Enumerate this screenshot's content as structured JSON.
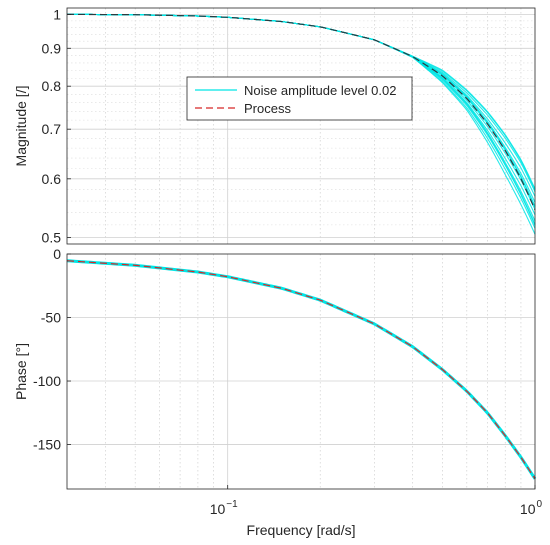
{
  "chart_data": [
    {
      "type": "line",
      "panel": "magnitude",
      "xscale": "log",
      "yscale": "log",
      "xlim": [
        0.03,
        1.0
      ],
      "ylim": [
        0.49,
        1.02
      ],
      "ylabel": "Magnitude [/]",
      "ytick_values": [
        0.5,
        0.6,
        0.7,
        0.8,
        0.9,
        1.0
      ],
      "ytick_labels": [
        "0.5",
        "0.6",
        "0.7",
        "0.8",
        "0.9",
        "1"
      ],
      "grid": true,
      "legend": {
        "placement": "center-left",
        "entries": [
          "Noise amplitude level 0.02",
          "Process"
        ]
      },
      "series": [
        {
          "name": "Noise amplitude level 0.02",
          "style": "solid",
          "color": "#00e5e5",
          "x": [
            0.03,
            0.05,
            0.08,
            0.1,
            0.15,
            0.2,
            0.3,
            0.4,
            0.5,
            0.6,
            0.7,
            0.8,
            0.9,
            1.0
          ],
          "y_upper": [
            1.0,
            0.999,
            0.995,
            0.991,
            0.978,
            0.962,
            0.924,
            0.878,
            0.84,
            0.79,
            0.74,
            0.69,
            0.64,
            0.585
          ],
          "y_lower": [
            1.0,
            0.999,
            0.995,
            0.991,
            0.978,
            0.962,
            0.924,
            0.875,
            0.81,
            0.745,
            0.675,
            0.61,
            0.555,
            0.505
          ]
        },
        {
          "name": "Process",
          "style": "dashed",
          "color": "#d62728",
          "x": [
            0.03,
            0.05,
            0.08,
            0.1,
            0.15,
            0.2,
            0.3,
            0.4,
            0.5,
            0.6,
            0.7,
            0.8,
            0.9,
            1.0
          ],
          "y": [
            1.0,
            0.999,
            0.995,
            0.991,
            0.978,
            0.962,
            0.924,
            0.877,
            0.826,
            0.77,
            0.712,
            0.655,
            0.6,
            0.545
          ]
        }
      ]
    },
    {
      "type": "line",
      "panel": "phase",
      "xscale": "log",
      "xlim": [
        0.03,
        1.0
      ],
      "ylim": [
        -185,
        0
      ],
      "xlabel": "Frequency [rad/s]",
      "ylabel": "Phase [°]",
      "xtick_values": [
        0.1,
        1.0
      ],
      "xtick_base": [
        "10",
        "10"
      ],
      "xtick_exp": [
        "−1",
        "0"
      ],
      "ytick_values": [
        0,
        -50,
        -100,
        -150
      ],
      "ytick_labels": [
        "0",
        "-50",
        "-100",
        "-150"
      ],
      "grid": true,
      "series": [
        {
          "name": "Noise amplitude level 0.02",
          "style": "solid",
          "color": "#00e5e5",
          "x": [
            0.03,
            0.05,
            0.08,
            0.1,
            0.15,
            0.2,
            0.3,
            0.4,
            0.5,
            0.6,
            0.7,
            0.8,
            0.9,
            1.0
          ],
          "y": [
            -5.3,
            -8.9,
            -14.2,
            -17.9,
            -27.0,
            -36.3,
            -55.0,
            -73.0,
            -91.0,
            -108.0,
            -125.0,
            -143.0,
            -160.0,
            -177.0
          ]
        },
        {
          "name": "Process",
          "style": "dashed",
          "color": "#d62728",
          "x": [
            0.03,
            0.05,
            0.08,
            0.1,
            0.15,
            0.2,
            0.3,
            0.4,
            0.5,
            0.6,
            0.7,
            0.8,
            0.9,
            1.0
          ],
          "y": [
            -5.3,
            -8.9,
            -14.2,
            -17.9,
            -27.0,
            -36.3,
            -55.0,
            -73.0,
            -91.0,
            -108.0,
            -125.0,
            -143.0,
            -160.0,
            -177.0
          ]
        }
      ]
    }
  ]
}
